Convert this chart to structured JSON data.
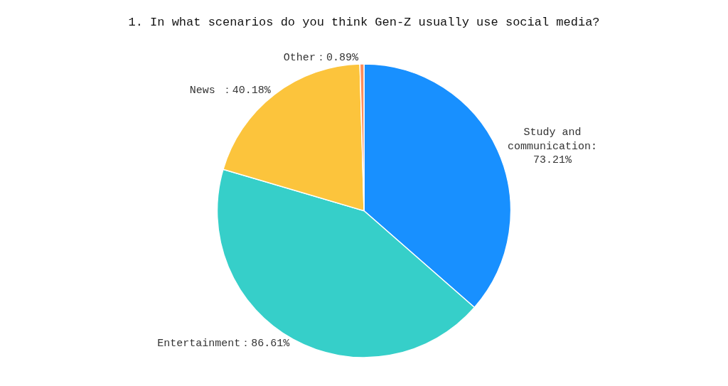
{
  "chart_data": {
    "type": "pie",
    "title": "1. In what scenarios do you think Gen-Z usually use social media?",
    "categories": [
      "Study and\ncommunication:\n73.21%",
      "Entertainment：86.61%",
      "News ：40.18%",
      "Other：0.89%"
    ],
    "values": [
      73.21,
      86.61,
      40.18,
      0.89
    ],
    "colors": [
      "#1890ff",
      "#36cfc9",
      "#fcc43c",
      "#ff8c5a"
    ],
    "legend": false
  }
}
